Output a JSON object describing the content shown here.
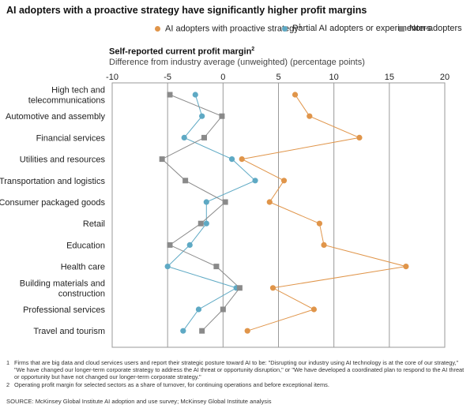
{
  "title": "AI adopters with a proactive strategy have significantly higher profit margins",
  "subtitle": {
    "main": "Self-reported current profit margin",
    "main_sup": "2",
    "secondary": "Difference from industry average (unweighted) (percentage points)"
  },
  "colors": {
    "proactive": "#e0954a",
    "partial": "#5ea9c4",
    "non": "#8a8a8a",
    "grid": "#9a9a9a"
  },
  "chart_data": {
    "type": "line",
    "orientation": "horizontal",
    "x_axis": {
      "range": [
        -10,
        20
      ],
      "ticks": [
        -10,
        -5,
        0,
        5,
        10,
        15,
        20
      ]
    },
    "categories": [
      "High tech and telecommunications",
      "Automotive and assembly",
      "Financial services",
      "Utilities and resources",
      "Transportation and logistics",
      "Consumer packaged goods",
      "Retail",
      "Education",
      "Health care",
      "Building materials and construction",
      "Professional services",
      "Travel and tourism"
    ],
    "category_lines": [
      [
        "High tech and",
        "telecommunications"
      ],
      [
        "Automotive and assembly"
      ],
      [
        "Financial services"
      ],
      [
        "Utilities and resources"
      ],
      [
        "Transportation and logistics"
      ],
      [
        "Consumer packaged goods"
      ],
      [
        "Retail"
      ],
      [
        "Education"
      ],
      [
        "Health care"
      ],
      [
        "Building materials and",
        "construction"
      ],
      [
        "Professional services"
      ],
      [
        "Travel and tourism"
      ]
    ],
    "series": [
      {
        "name": "AI adopters with proactive strategy",
        "name_sup": "1",
        "marker": "circle",
        "values": [
          6.5,
          7.8,
          12.3,
          1.7,
          5.5,
          4.2,
          8.7,
          9.1,
          16.5,
          4.5,
          8.2,
          2.2
        ]
      },
      {
        "name": "Partial AI adopters or experimenters",
        "name_sup": "",
        "marker": "circle",
        "values": [
          -2.5,
          -1.9,
          -3.5,
          0.8,
          2.9,
          -1.5,
          -1.5,
          -3.0,
          -5.0,
          1.2,
          -2.2,
          -3.6
        ]
      },
      {
        "name": "Non-adopters",
        "name_sup": "",
        "marker": "square",
        "values": [
          -4.8,
          -0.1,
          -1.7,
          -5.5,
          -3.4,
          0.2,
          -2.0,
          -4.8,
          -0.6,
          1.5,
          0.0,
          -1.9
        ]
      }
    ]
  },
  "footnotes": [
    {
      "num": "1",
      "text": "Firms that are big data and cloud services users and report their strategic posture toward AI to be: \"Disrupting our industry using AI technology is at the core of our strategy,\" \"We have changed our longer-term corporate strategy to address the AI threat or opportunity disruption,\" or \"We have developed a coordinated plan to respond to the AI threat or opportunity but have not changed our longer-term corporate strategy.\""
    },
    {
      "num": "2",
      "text": "Operating profit margin for selected sectors as a share of turnover, for continuing operations and before exceptional items."
    }
  ],
  "source": "SOURCE:  McKinsey Global Institute AI adoption and use survey; McKinsey Global Institute analysis"
}
